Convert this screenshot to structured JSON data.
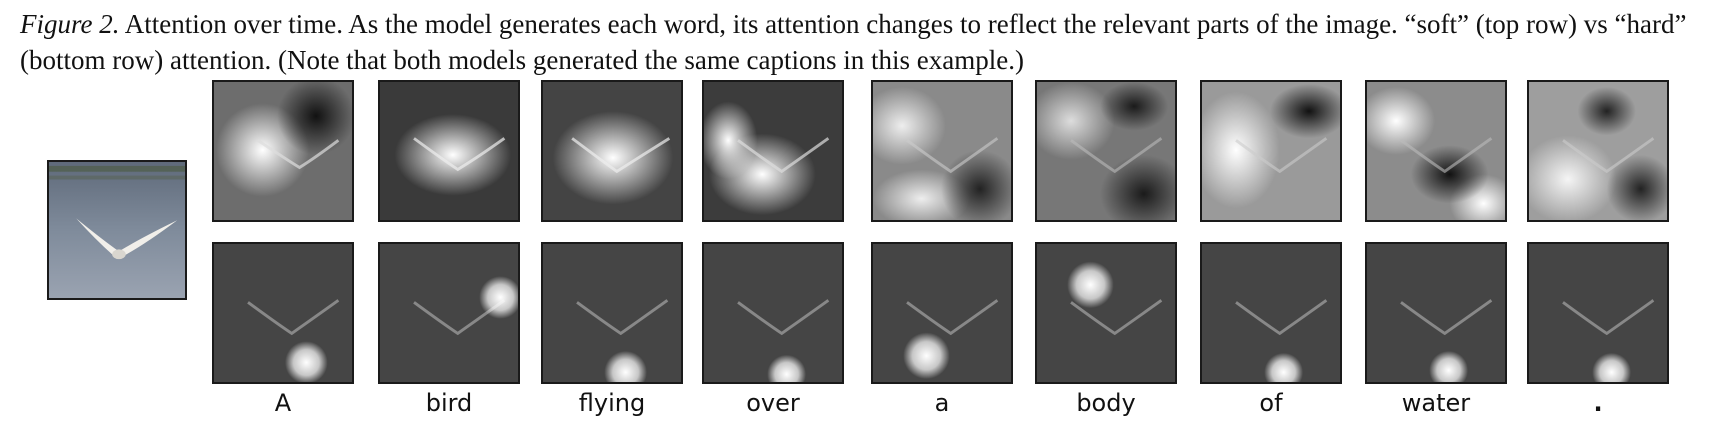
{
  "caption": {
    "label": "Figure 2.",
    "text": " Attention over time.  As the model generates each word, its attention changes to reflect the relevant parts of the image. “soft” (top row) vs “hard” (bottom row) attention. (Note that both models generated the same captions in this example.)"
  },
  "words": [
    "A",
    "bird",
    "flying",
    "over",
    "a",
    "body",
    "of",
    "water",
    "."
  ],
  "icons": {
    "original": "seagull-photo",
    "soft": "soft-attention-map",
    "hard": "hard-attention-map"
  }
}
